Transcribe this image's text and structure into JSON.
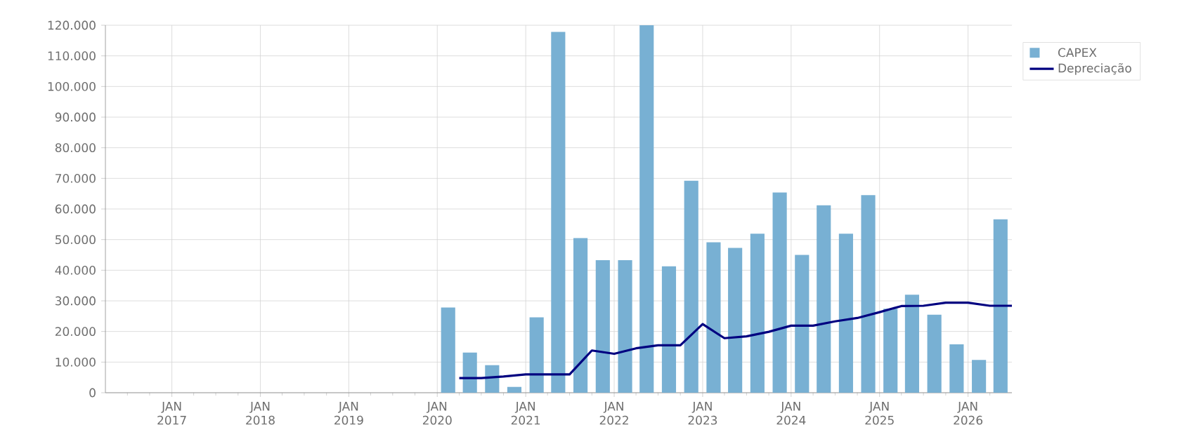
{
  "chart_data": {
    "type": "bar",
    "x": [
      "2020-02-15",
      "2020-05-15",
      "2020-08-15",
      "2020-11-15",
      "2021-02-15",
      "2021-05-15",
      "2021-08-15",
      "2021-11-15",
      "2022-02-15",
      "2022-05-15",
      "2022-08-15",
      "2022-11-15",
      "2023-02-15",
      "2023-05-15",
      "2023-08-15",
      "2023-11-15",
      "2024-02-15",
      "2024-05-15",
      "2024-08-15",
      "2024-11-15",
      "2025-02-15",
      "2025-05-15",
      "2025-08-15",
      "2025-11-15",
      "2026-02-15",
      "2026-05-15"
    ],
    "xlim": [
      "2016-04-01",
      "2026-07-01"
    ],
    "xticks": [
      {
        "value": "2016-07-01",
        "label": null
      },
      {
        "value": "2016-10-01",
        "label": null
      },
      {
        "value": "2017-01-01",
        "label": "JAN 2017"
      },
      {
        "value": "2017-04-01",
        "label": null
      },
      {
        "value": "2017-07-01",
        "label": null
      },
      {
        "value": "2017-10-01",
        "label": null
      },
      {
        "value": "2018-01-01",
        "label": "JAN 2018"
      },
      {
        "value": "2018-04-01",
        "label": null
      },
      {
        "value": "2018-07-01",
        "label": null
      },
      {
        "value": "2018-10-01",
        "label": null
      },
      {
        "value": "2019-01-01",
        "label": "JAN 2019"
      },
      {
        "value": "2019-04-01",
        "label": null
      },
      {
        "value": "2019-07-01",
        "label": null
      },
      {
        "value": "2019-10-01",
        "label": null
      },
      {
        "value": "2020-01-01",
        "label": "JAN 2020"
      },
      {
        "value": "2020-04-01",
        "label": null
      },
      {
        "value": "2020-07-01",
        "label": null
      },
      {
        "value": "2020-10-01",
        "label": null
      },
      {
        "value": "2021-01-01",
        "label": "JAN 2021"
      },
      {
        "value": "2021-04-01",
        "label": null
      },
      {
        "value": "2021-07-01",
        "label": null
      },
      {
        "value": "2021-10-01",
        "label": null
      },
      {
        "value": "2022-01-01",
        "label": "JAN 2022"
      },
      {
        "value": "2022-04-01",
        "label": null
      },
      {
        "value": "2022-07-01",
        "label": null
      },
      {
        "value": "2022-10-01",
        "label": null
      },
      {
        "value": "2023-01-01",
        "label": "JAN 2023"
      },
      {
        "value": "2023-04-01",
        "label": null
      },
      {
        "value": "2023-07-01",
        "label": null
      },
      {
        "value": "2023-10-01",
        "label": null
      },
      {
        "value": "2024-01-01",
        "label": "JAN 2024"
      },
      {
        "value": "2024-04-01",
        "label": null
      },
      {
        "value": "2024-07-01",
        "label": null
      },
      {
        "value": "2024-10-01",
        "label": null
      },
      {
        "value": "2025-01-01",
        "label": "JAN 2025"
      },
      {
        "value": "2025-04-01",
        "label": null
      },
      {
        "value": "2025-07-01",
        "label": null
      },
      {
        "value": "2025-10-01",
        "label": null
      },
      {
        "value": "2026-01-01",
        "label": "JAN 2026"
      },
      {
        "value": "2026-04-01",
        "label": null
      }
    ],
    "ylim": [
      0,
      120000
    ],
    "yticks": [
      0,
      {
        "value": 10000,
        "label": "10.000"
      },
      {
        "value": 20000,
        "label": "20.000"
      },
      {
        "value": 30000,
        "label": "30.000"
      },
      {
        "value": 40000,
        "label": "40.000"
      },
      {
        "value": 50000,
        "label": "50.000"
      },
      {
        "value": 60000,
        "label": "60.000"
      },
      {
        "value": 70000,
        "label": "70.000"
      },
      {
        "value": 80000,
        "label": "80.000"
      },
      {
        "value": 90000,
        "label": "90.000"
      },
      {
        "value": 100000,
        "label": "100.000"
      },
      {
        "value": 110000,
        "label": "110.000"
      },
      {
        "value": 120000,
        "label": "120.000"
      }
    ],
    "grid": true,
    "legend": "top right",
    "series": [
      {
        "name": "CAPEX",
        "color": "#78b0d3",
        "values": [
          27800,
          13100,
          9000,
          1900,
          24600,
          117800,
          50500,
          43300,
          43300,
          120000,
          41300,
          69200,
          49100,
          47300,
          51900,
          65400,
          45000,
          61200,
          51900,
          64500,
          27400,
          32000,
          25500,
          15800,
          10700,
          56600
        ]
      },
      {
        "name": "Depreciação",
        "type": "line",
        "color": "#000080",
        "x": [
          "2020-04-01",
          "2020-07-01",
          "2020-10-01",
          "2021-01-01",
          "2021-04-01",
          "2021-07-01",
          "2021-10-01",
          "2022-01-01",
          "2022-04-01",
          "2022-07-01",
          "2022-10-01",
          "2023-01-01",
          "2023-04-01",
          "2023-07-01",
          "2023-10-01",
          "2024-01-01",
          "2024-04-01",
          "2024-07-01",
          "2024-10-01",
          "2025-01-01",
          "2025-04-01",
          "2025-07-01",
          "2025-10-01",
          "2026-01-01",
          "2026-04-01",
          "2026-07-01"
        ],
        "values": [
          4800,
          4800,
          5300,
          6000,
          6000,
          6000,
          13800,
          12700,
          14500,
          15500,
          15500,
          22400,
          17800,
          18400,
          19900,
          21900,
          21900,
          23300,
          24400,
          26300,
          28300,
          28400,
          29400,
          29400,
          28400,
          28400
        ]
      }
    ]
  }
}
